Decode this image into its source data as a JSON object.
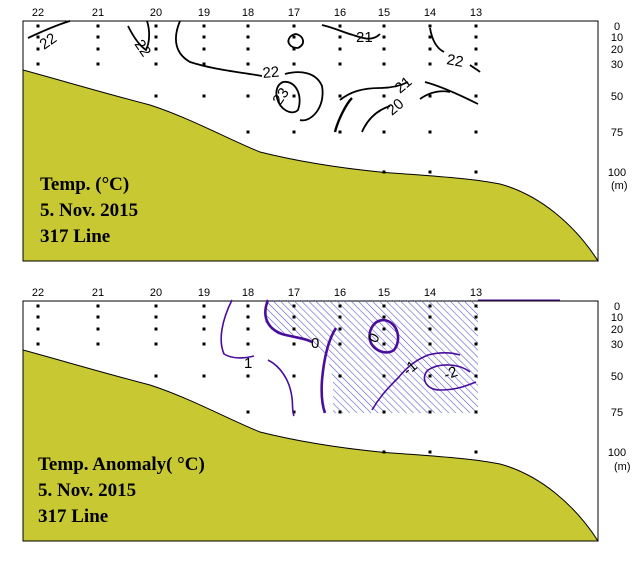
{
  "chart_data": [
    {
      "type": "contour",
      "title_lines": [
        "Temp. (°C)",
        "5. Nov. 2015",
        "317 Line"
      ],
      "stations": [
        "22",
        "21",
        "20",
        "19",
        "18",
        "17",
        "16",
        "15",
        "14",
        "13"
      ],
      "depth_ticks": [
        "0",
        "10",
        "20",
        "30",
        "50",
        "75",
        "100"
      ],
      "depth_unit": "(m)",
      "contour_labels": [
        "22",
        "22",
        "21",
        "22",
        "22",
        "23",
        "21",
        "20"
      ],
      "colors": {
        "contour": "#000000",
        "land": "#c8c832"
      }
    },
    {
      "type": "contour",
      "title_lines": [
        "Temp. Anomaly( °C)",
        "5. Nov. 2015",
        "317 Line"
      ],
      "stations": [
        "22",
        "21",
        "20",
        "19",
        "18",
        "17",
        "16",
        "15",
        "14",
        "13"
      ],
      "depth_ticks": [
        "0",
        "10",
        "20",
        "30",
        "50",
        "75",
        "100"
      ],
      "depth_unit": "(m)",
      "contour_labels": [
        "1",
        "0",
        "0",
        "-1",
        "-2"
      ],
      "colors": {
        "contour": "#4b0e9c",
        "hatch": "#5d5dc8",
        "land": "#c8c832"
      }
    }
  ]
}
